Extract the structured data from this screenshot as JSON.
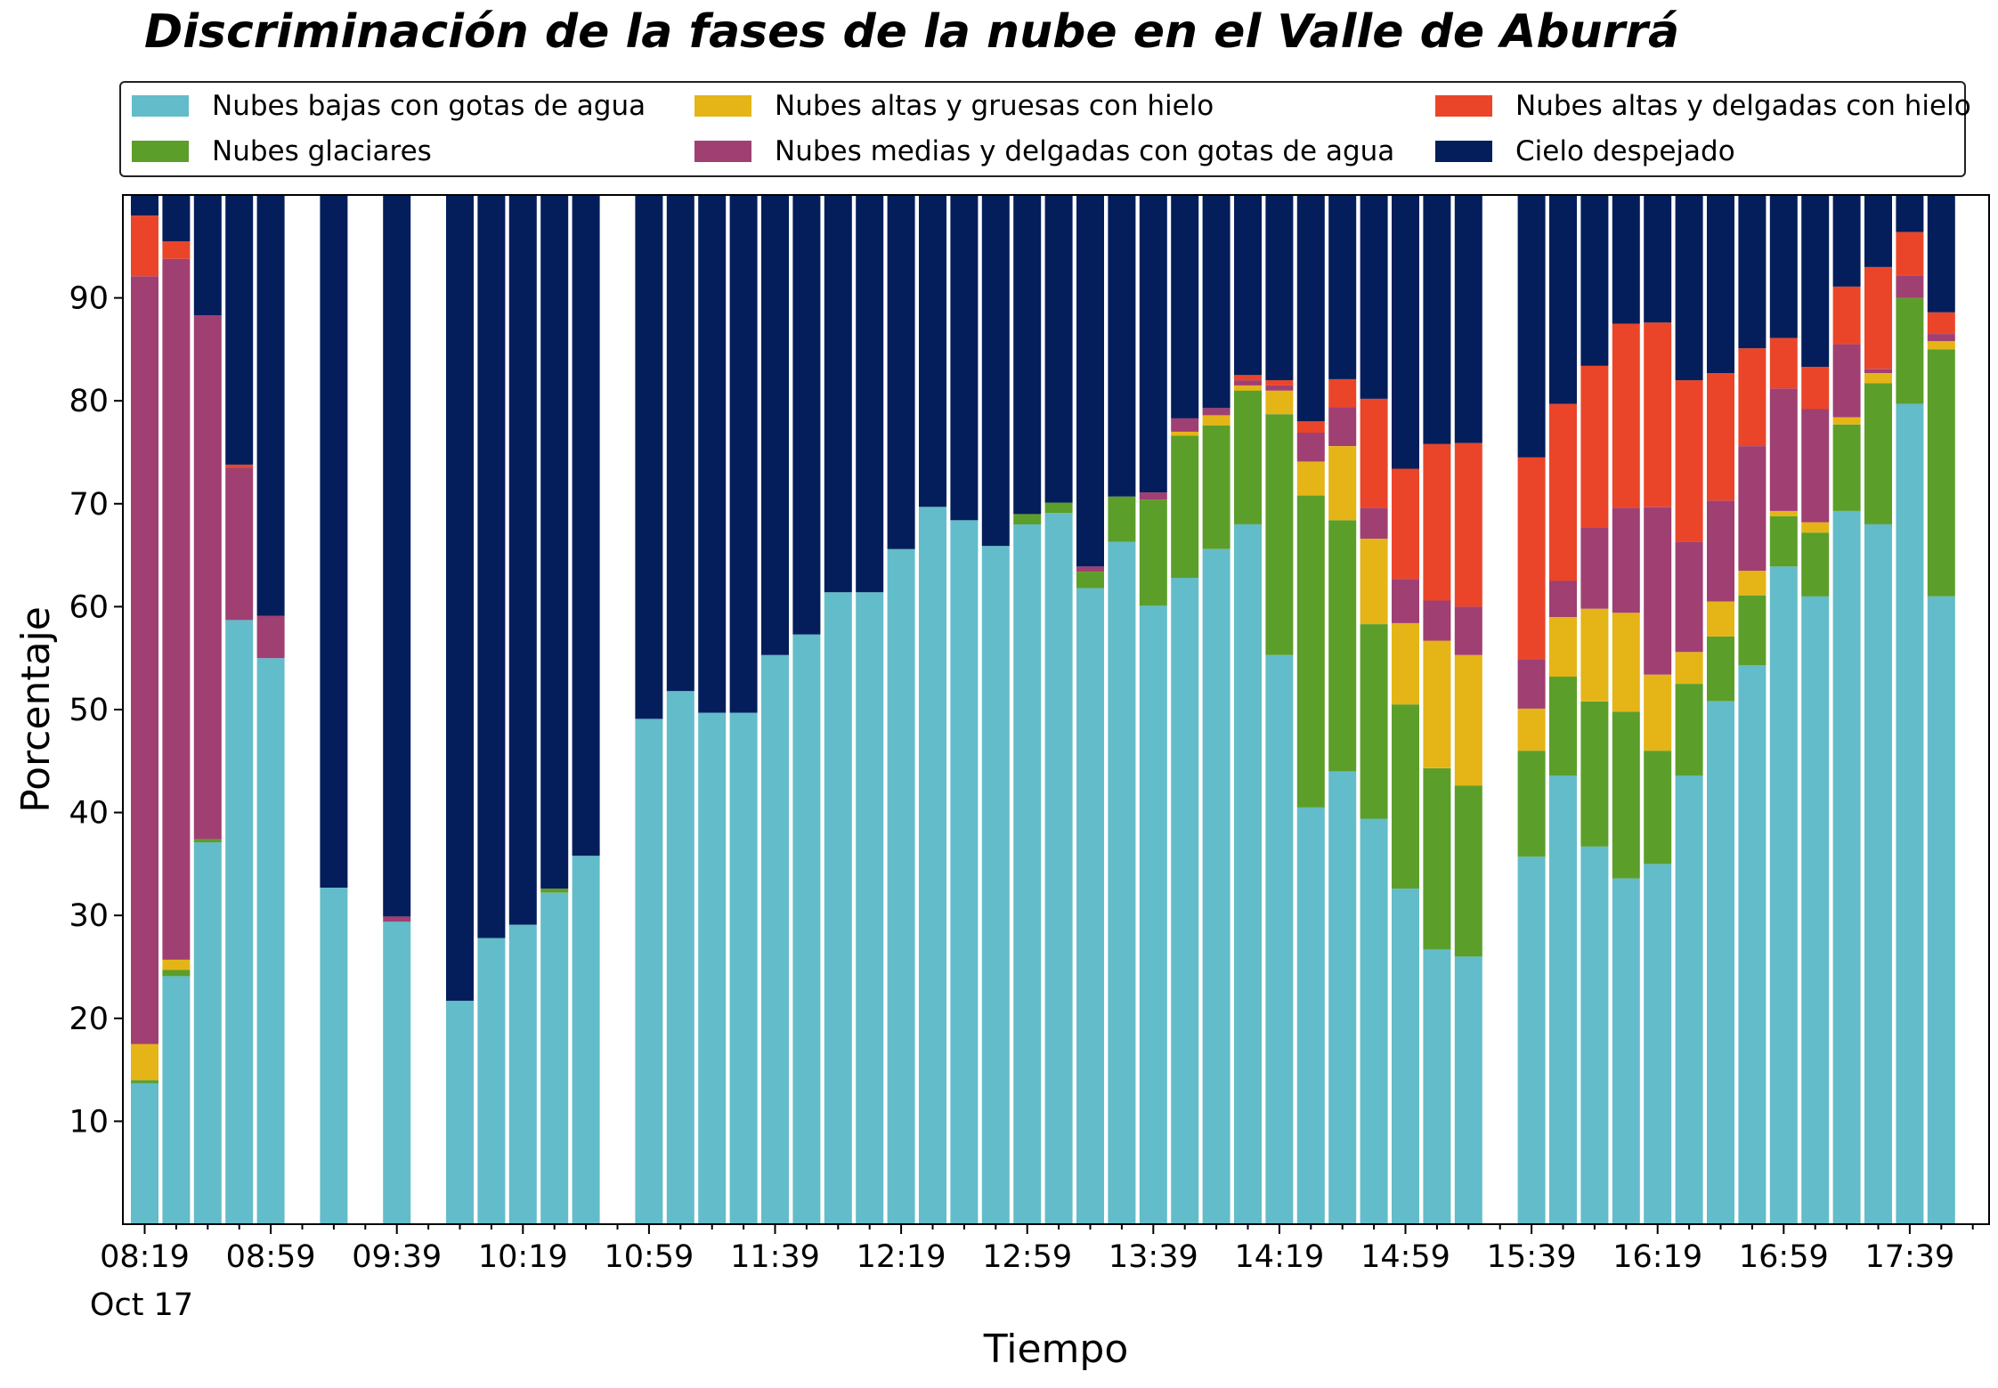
{
  "chart_data": {
    "type": "bar",
    "stacked": true,
    "title": "Discriminación de la fases de la nube en el Valle de Aburrá",
    "xlabel": "Tiempo",
    "ylabel": "Porcentaje",
    "ylim": [
      0,
      100
    ],
    "yticks": [
      10,
      20,
      30,
      40,
      50,
      60,
      70,
      80,
      90
    ],
    "x_tick_labels": [
      "08:19",
      "08:59",
      "09:39",
      "10:19",
      "10:59",
      "11:39",
      "12:19",
      "12:59",
      "13:39",
      "14:19",
      "14:59",
      "15:39",
      "16:19",
      "16:59",
      "17:39"
    ],
    "x_date_label": "Oct 17",
    "legend_position": "top",
    "grid": false,
    "categories": [
      "08:19",
      "08:29",
      "08:39",
      "08:49",
      "08:59",
      "09:09",
      "09:19",
      "09:29",
      "09:39",
      "09:49",
      "09:59",
      "10:09",
      "10:19",
      "10:29",
      "10:39",
      "10:49",
      "10:59",
      "11:09",
      "11:19",
      "11:29",
      "11:39",
      "11:49",
      "11:59",
      "12:09",
      "12:19",
      "12:29",
      "12:39",
      "12:49",
      "12:59",
      "13:09",
      "13:19",
      "13:29",
      "13:39",
      "13:49",
      "13:59",
      "14:09",
      "14:19",
      "14:29",
      "14:39",
      "14:49",
      "14:59",
      "15:09",
      "15:19",
      "15:29",
      "15:39",
      "15:49",
      "15:59",
      "16:09",
      "16:19",
      "16:29",
      "16:39",
      "16:49",
      "16:59",
      "17:09",
      "17:19",
      "17:29",
      "17:39",
      "17:49"
    ],
    "series": [
      {
        "name": "Nubes bajas con gotas de agua",
        "color": "#63bcc9",
        "values": [
          13.7,
          24.1,
          37.1,
          58.7,
          55.0,
          null,
          32.7,
          null,
          29.4,
          null,
          21.7,
          27.8,
          29.1,
          32.2,
          35.8,
          null,
          49.1,
          51.8,
          49.7,
          49.7,
          55.3,
          57.3,
          61.4,
          61.4,
          65.6,
          69.7,
          68.4,
          65.9,
          68.0,
          69.1,
          61.8,
          66.3,
          60.1,
          62.8,
          65.6,
          68.0,
          55.3,
          40.5,
          44.0,
          39.4,
          32.6,
          26.7,
          26.0,
          null,
          35.7,
          43.6,
          36.7,
          33.6,
          35.0,
          43.6,
          50.8,
          54.3,
          63.9,
          61.0,
          69.3,
          68.0,
          79.7,
          61.0
        ]
      },
      {
        "name": "Nubes glaciares",
        "color": "#5c9e2a",
        "values": [
          0.3,
          0.6,
          0.3,
          0,
          0,
          null,
          0,
          null,
          0,
          null,
          0,
          0,
          0,
          0.4,
          0,
          null,
          0,
          0,
          0,
          0,
          0,
          0,
          0,
          0,
          0,
          0,
          0,
          0,
          1.0,
          1.0,
          1.6,
          4.4,
          10.3,
          13.8,
          12.0,
          13.0,
          23.4,
          30.3,
          24.4,
          18.9,
          17.9,
          17.6,
          16.6,
          null,
          10.3,
          9.6,
          14.1,
          16.2,
          11.0,
          8.9,
          6.3,
          6.8,
          4.9,
          6.2,
          8.4,
          13.7,
          10.3,
          24.0
        ]
      },
      {
        "name": "Nubes altas y gruesas con hielo",
        "color": "#e5b417",
        "values": [
          3.5,
          1.0,
          0,
          0,
          0,
          null,
          0,
          null,
          0,
          null,
          0,
          0,
          0,
          0,
          0,
          null,
          0,
          0,
          0,
          0,
          0,
          0,
          0,
          0,
          0,
          0,
          0,
          0,
          0,
          0,
          0,
          0,
          0,
          0.4,
          1.0,
          0.5,
          2.3,
          3.3,
          7.2,
          8.3,
          7.9,
          12.4,
          12.7,
          null,
          4.1,
          5.8,
          9.0,
          9.6,
          7.4,
          3.1,
          3.4,
          2.4,
          0.5,
          1.0,
          0.7,
          1.0,
          0,
          0.8
        ]
      },
      {
        "name": "Nubes medias y delgadas con gotas de agua",
        "color": "#a03f72",
        "values": [
          74.6,
          68.1,
          50.9,
          14.8,
          4.1,
          null,
          0,
          null,
          0.5,
          null,
          0,
          0,
          0,
          0,
          0,
          null,
          0,
          0,
          0,
          0,
          0,
          0,
          0,
          0,
          0,
          0,
          0,
          0,
          0,
          0,
          0.5,
          0,
          0.7,
          1.3,
          0.7,
          0.5,
          0.5,
          2.8,
          3.8,
          3.0,
          4.3,
          3.9,
          4.7,
          null,
          4.8,
          3.5,
          7.9,
          10.2,
          16.3,
          10.7,
          9.8,
          12.1,
          11.9,
          11.0,
          7.1,
          0.4,
          2.2,
          0.7
        ]
      },
      {
        "name": "Nubes altas y delgadas con hielo",
        "color": "#eb4529",
        "values": [
          5.9,
          1.7,
          0,
          0.3,
          0,
          null,
          0,
          null,
          0,
          null,
          0,
          0,
          0,
          0,
          0,
          null,
          0,
          0,
          0,
          0,
          0,
          0,
          0,
          0,
          0,
          0,
          0,
          0,
          0,
          0,
          0,
          0,
          0,
          0,
          0,
          0.5,
          0.5,
          1.1,
          2.7,
          10.6,
          10.7,
          15.2,
          15.9,
          null,
          19.6,
          17.2,
          15.7,
          17.9,
          17.9,
          15.7,
          12.4,
          9.5,
          4.9,
          4.1,
          5.6,
          9.9,
          4.2,
          2.1
        ]
      },
      {
        "name": "Cielo despejado",
        "color": "#041e5c",
        "values": [
          2.0,
          4.5,
          11.7,
          26.2,
          40.9,
          null,
          67.3,
          null,
          70.1,
          null,
          78.3,
          72.2,
          70.9,
          67.4,
          64.2,
          null,
          50.9,
          48.2,
          50.3,
          50.3,
          44.7,
          42.7,
          38.6,
          38.6,
          34.4,
          30.3,
          31.6,
          34.1,
          31.0,
          29.9,
          36.1,
          29.3,
          28.9,
          21.7,
          20.7,
          17.5,
          18.0,
          22.0,
          17.9,
          19.8,
          26.6,
          24.2,
          24.1,
          null,
          25.5,
          20.3,
          16.6,
          12.5,
          12.4,
          18.0,
          17.3,
          14.9,
          13.9,
          16.7,
          8.9,
          7.0,
          3.6,
          11.4
        ]
      }
    ]
  }
}
